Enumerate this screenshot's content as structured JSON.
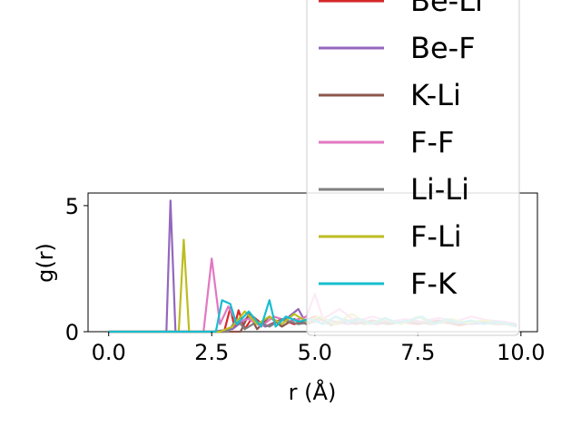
{
  "chart_data": {
    "type": "line",
    "title": "",
    "xlabel": "r (Å)",
    "ylabel": "g(r)",
    "xlim": [
      -0.5,
      10.4
    ],
    "ylim": [
      0,
      5.5
    ],
    "xticks": [
      0.0,
      2.5,
      5.0,
      7.5,
      10.0
    ],
    "xtick_labels": [
      "0.0",
      "2.5",
      "5.0",
      "7.5",
      "10.0"
    ],
    "yticks": [
      0,
      5
    ],
    "ytick_labels": [
      "0",
      "5"
    ],
    "legend_placement": "top-right",
    "series": [
      {
        "name": "Be-Li",
        "color": "#d62728",
        "x": [
          0,
          2.8,
          2.95,
          3.05,
          3.15,
          3.3,
          3.5,
          3.8,
          4.2,
          4.5,
          5.0,
          5.5,
          6.0,
          6.5,
          7.0,
          7.5,
          8.0,
          8.5,
          9.0,
          9.5,
          9.9
        ],
        "y": [
          0,
          0,
          0.95,
          0.2,
          0.85,
          0.1,
          0.6,
          0.2,
          0.5,
          0.3,
          0.6,
          0.3,
          0.5,
          0.3,
          0.4,
          0.3,
          0.45,
          0.25,
          0.4,
          0.3,
          0.3
        ]
      },
      {
        "name": "Be-F",
        "color": "#9467bd",
        "x": [
          0,
          1.4,
          1.5,
          1.62,
          2.5,
          3.0,
          3.4,
          3.8,
          4.3,
          4.6,
          4.8,
          5.2,
          5.8,
          6.2,
          6.8,
          7.3,
          7.8,
          8.3,
          8.8,
          9.3,
          9.9
        ],
        "y": [
          0,
          0,
          5.2,
          0,
          0,
          0.1,
          0.6,
          0.2,
          0.5,
          0.9,
          0.3,
          0.5,
          0.3,
          0.4,
          0.3,
          0.45,
          0.3,
          0.4,
          0.3,
          0.35,
          0.3
        ]
      },
      {
        "name": "K-Li",
        "color": "#8c564b",
        "x": [
          0,
          3.2,
          3.4,
          3.6,
          3.9,
          4.2,
          4.5,
          4.8,
          5.1,
          5.4,
          5.7,
          6.0,
          6.4,
          6.8,
          7.2,
          7.6,
          8.0,
          8.4,
          8.8,
          9.2,
          9.6,
          9.9
        ],
        "y": [
          0,
          0,
          0.7,
          0.1,
          0.6,
          0.2,
          0.5,
          0.3,
          0.55,
          0.25,
          0.5,
          0.3,
          0.45,
          0.3,
          0.4,
          0.35,
          0.4,
          0.3,
          0.4,
          0.35,
          0.3,
          0.3
        ]
      },
      {
        "name": "F-F",
        "color": "#e377c2",
        "x": [
          0,
          2.3,
          2.5,
          2.7,
          2.9,
          3.1,
          3.4,
          3.7,
          4.0,
          4.4,
          4.8,
          5.0,
          5.2,
          5.6,
          6.0,
          6.4,
          6.8,
          7.2,
          7.6,
          8.0,
          8.4,
          8.8,
          9.2,
          9.6,
          9.9
        ],
        "y": [
          0,
          0,
          2.9,
          0.3,
          1.0,
          0.4,
          0.5,
          0.2,
          0.6,
          0.4,
          0.6,
          1.5,
          0.5,
          0.9,
          0.4,
          0.6,
          0.4,
          0.5,
          0.4,
          0.55,
          0.4,
          0.6,
          0.45,
          0.4,
          0.3
        ]
      },
      {
        "name": "Li-Li",
        "color": "#7f7f7f",
        "x": [
          0,
          2.9,
          3.1,
          3.3,
          3.6,
          3.9,
          4.2,
          4.6,
          5.0,
          5.4,
          5.8,
          6.2,
          6.6,
          7.0,
          7.4,
          7.8,
          8.2,
          8.6,
          9.0,
          9.4,
          9.9
        ],
        "y": [
          0,
          0,
          0.5,
          0.1,
          0.4,
          0.2,
          0.5,
          0.3,
          0.4,
          0.3,
          0.45,
          0.3,
          0.4,
          0.35,
          0.4,
          0.3,
          0.4,
          0.35,
          0.35,
          0.3,
          0.3
        ]
      },
      {
        "name": "F-Li",
        "color": "#bcbd22",
        "x": [
          0,
          1.7,
          1.82,
          1.95,
          2.7,
          3.0,
          3.3,
          3.6,
          3.9,
          4.2,
          4.5,
          4.8,
          5.1,
          5.5,
          5.9,
          6.3,
          6.7,
          7.1,
          7.5,
          7.9,
          8.3,
          8.7,
          9.1,
          9.5,
          9.9
        ],
        "y": [
          0,
          0,
          3.65,
          0,
          0,
          0.2,
          0.8,
          0.3,
          0.6,
          0.3,
          0.7,
          0.4,
          0.6,
          0.3,
          0.7,
          0.3,
          0.5,
          0.3,
          0.6,
          0.3,
          0.5,
          0.35,
          0.45,
          0.35,
          0.2
        ]
      },
      {
        "name": "F-K",
        "color": "#17becf",
        "x": [
          0,
          2.6,
          2.75,
          2.95,
          3.1,
          3.4,
          3.7,
          3.9,
          4.05,
          4.3,
          4.6,
          4.9,
          5.2,
          5.5,
          5.8,
          6.1,
          6.4,
          6.7,
          7.0,
          7.3,
          7.6,
          7.9,
          8.2,
          8.5,
          8.8,
          9.1,
          9.4,
          9.7,
          9.9
        ],
        "y": [
          0,
          0,
          1.25,
          1.1,
          0.3,
          0.8,
          0.2,
          1.25,
          0.2,
          0.6,
          0.4,
          0.5,
          0.3,
          0.6,
          0.4,
          0.5,
          0.3,
          0.55,
          0.35,
          0.45,
          0.6,
          0.3,
          0.5,
          0.35,
          0.45,
          0.3,
          0.4,
          0.3,
          0.2
        ]
      }
    ]
  }
}
